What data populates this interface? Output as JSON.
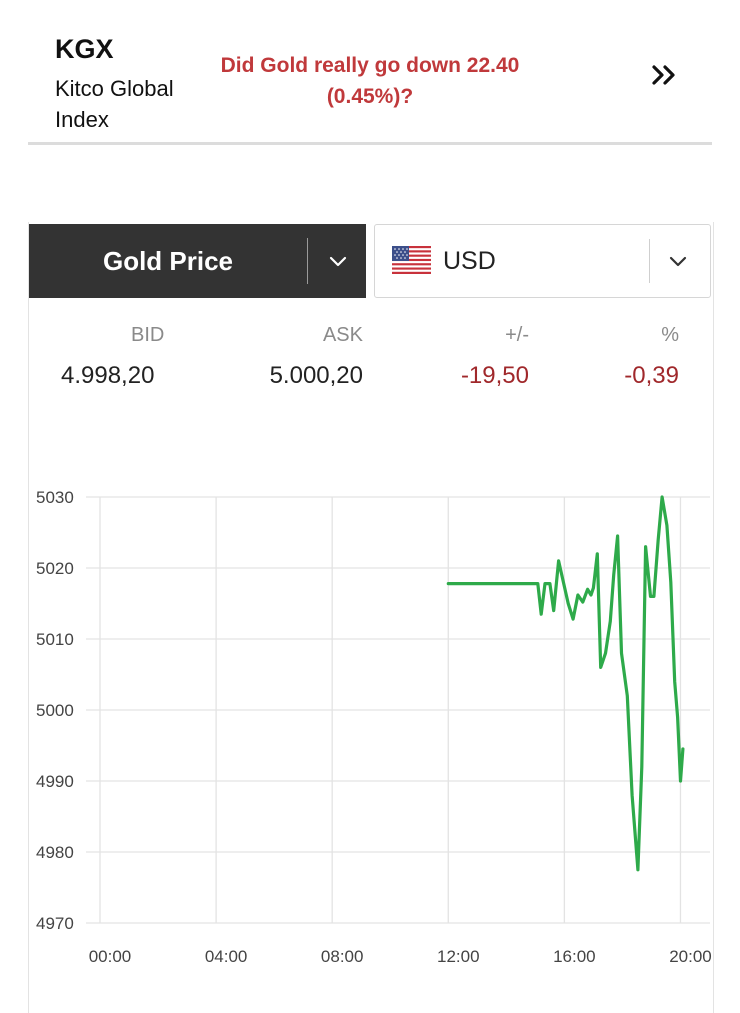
{
  "kgx": {
    "code": "KGX",
    "name": "Kitco Global Index",
    "question": "Did Gold really go down 22.40 (0.45%)?",
    "more_icon": "double-chevron-right-icon"
  },
  "selectors": {
    "metal": {
      "label": "Gold Price",
      "icon": "chevron-down-icon"
    },
    "currency": {
      "label": "USD",
      "flag_icon": "us-flag-icon",
      "icon": "chevron-down-icon"
    }
  },
  "quote": {
    "headers": {
      "bid": "BID",
      "ask": "ASK",
      "change": "+/-",
      "percent": "%"
    },
    "values": {
      "bid": "4.998,20",
      "ask": "5.000,20",
      "change": "-19,50",
      "percent": "-0,39"
    },
    "negative_color": "#a0282b"
  },
  "chart_data": {
    "type": "line",
    "title": "",
    "xlabel": "",
    "ylabel": "",
    "x_ticks": [
      "00:00",
      "04:00",
      "08:00",
      "12:00",
      "16:00",
      "20:00"
    ],
    "y_ticks": [
      "5030",
      "5020",
      "5010",
      "5000",
      "4990",
      "4980",
      "4970"
    ],
    "xlim": [
      "00:00",
      "21:30"
    ],
    "ylim": [
      4970,
      5030
    ],
    "grid": true,
    "legend": "none",
    "series": [
      {
        "color": "#2eaa4a",
        "points": [
          [
            "12:00",
            5017.8
          ],
          [
            "12:30",
            5017.8
          ],
          [
            "13:00",
            5017.8
          ],
          [
            "13:30",
            5017.8
          ],
          [
            "14:00",
            5017.8
          ],
          [
            "14:30",
            5017.8
          ],
          [
            "15:00",
            5017.8
          ],
          [
            "15:05",
            5017.8
          ],
          [
            "15:12",
            5013.5
          ],
          [
            "15:20",
            5017.8
          ],
          [
            "15:30",
            5017.8
          ],
          [
            "15:38",
            5014.0
          ],
          [
            "15:48",
            5021.0
          ],
          [
            "15:58",
            5018.0
          ],
          [
            "16:08",
            5015.0
          ],
          [
            "16:18",
            5012.8
          ],
          [
            "16:28",
            5016.2
          ],
          [
            "16:38",
            5015.2
          ],
          [
            "16:48",
            5017.0
          ],
          [
            "16:55",
            5016.2
          ],
          [
            "17:00",
            5017.2
          ],
          [
            "17:08",
            5022.0
          ],
          [
            "17:15",
            5006.0
          ],
          [
            "17:25",
            5008.0
          ],
          [
            "17:35",
            5012.5
          ],
          [
            "17:42",
            5019.0
          ],
          [
            "17:50",
            5024.5
          ],
          [
            "17:58",
            5008.0
          ],
          [
            "18:10",
            5002.0
          ],
          [
            "18:20",
            4988.0
          ],
          [
            "18:32",
            4977.5
          ],
          [
            "18:40",
            4992.0
          ],
          [
            "18:48",
            5023.0
          ],
          [
            "18:58",
            5016.0
          ],
          [
            "19:05",
            5016.0
          ],
          [
            "19:14",
            5024.0
          ],
          [
            "19:22",
            5030.0
          ],
          [
            "19:32",
            5026.0
          ],
          [
            "19:40",
            5018.0
          ],
          [
            "19:48",
            5004.0
          ],
          [
            "19:54",
            4999.0
          ],
          [
            "20:00",
            4990.0
          ],
          [
            "20:05",
            4994.5
          ]
        ]
      }
    ]
  }
}
